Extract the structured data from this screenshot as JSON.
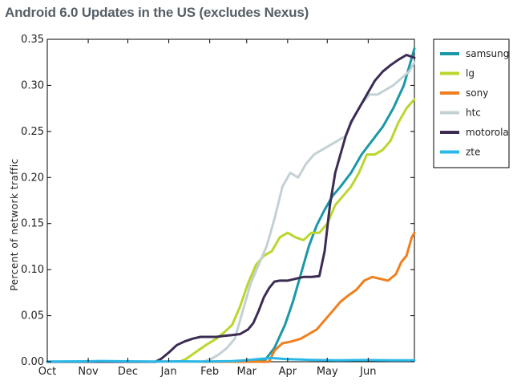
{
  "chart_data": {
    "type": "line",
    "title": "Android 6.0 Updates in the US (excludes Nexus)",
    "xlabel": "",
    "ylabel": "Percent of network traffic",
    "x_ticks": [
      "Oct",
      "Nov",
      "Dec",
      "Jan",
      "Feb",
      "Mar",
      "Apr",
      "May",
      "Jun"
    ],
    "x_tick_days": [
      0,
      31,
      61,
      92,
      123,
      151,
      182,
      212,
      243
    ],
    "xlim": [
      0,
      278
    ],
    "ylim": [
      0,
      0.35
    ],
    "y_ticks": [
      "0.00",
      "0.05",
      "0.10",
      "0.15",
      "0.20",
      "0.25",
      "0.30",
      "0.35"
    ],
    "y_tick_values": [
      0,
      0.05,
      0.1,
      0.15,
      0.2,
      0.25,
      0.3,
      0.35
    ],
    "grid": false,
    "legend_position": "outside-right",
    "series": [
      {
        "name": "samsung",
        "color": "#1b98a8",
        "x": [
          0,
          155,
          165,
          172,
          180,
          186,
          192,
          198,
          204,
          210,
          216,
          222,
          230,
          238,
          246,
          254,
          262,
          270,
          278
        ],
        "y": [
          0,
          0,
          0.002,
          0.015,
          0.04,
          0.065,
          0.095,
          0.125,
          0.148,
          0.165,
          0.18,
          0.19,
          0.205,
          0.225,
          0.24,
          0.255,
          0.275,
          0.3,
          0.34
        ]
      },
      {
        "name": "lg",
        "color": "#bcd62e",
        "x": [
          0,
          100,
          105,
          112,
          120,
          128,
          134,
          140,
          146,
          152,
          158,
          164,
          170,
          176,
          182,
          188,
          194,
          200,
          206,
          212,
          218,
          224,
          230,
          236,
          242,
          248,
          254,
          260,
          266,
          272,
          278
        ],
        "y": [
          0,
          0,
          0.003,
          0.01,
          0.018,
          0.025,
          0.032,
          0.04,
          0.06,
          0.085,
          0.105,
          0.115,
          0.12,
          0.135,
          0.14,
          0.135,
          0.132,
          0.14,
          0.14,
          0.15,
          0.17,
          0.18,
          0.19,
          0.205,
          0.225,
          0.225,
          0.23,
          0.24,
          0.26,
          0.275,
          0.285
        ]
      },
      {
        "name": "sony",
        "color": "#f07f1e",
        "x": [
          0,
          168,
          172,
          178,
          185,
          192,
          198,
          204,
          210,
          216,
          222,
          228,
          234,
          240,
          246,
          252,
          258,
          264,
          268,
          272,
          276,
          278
        ],
        "y": [
          0,
          0,
          0.012,
          0.02,
          0.022,
          0.025,
          0.03,
          0.035,
          0.045,
          0.055,
          0.065,
          0.072,
          0.078,
          0.088,
          0.092,
          0.09,
          0.088,
          0.095,
          0.108,
          0.115,
          0.135,
          0.14
        ]
      },
      {
        "name": "htc",
        "color": "#c3d1d5",
        "x": [
          0,
          118,
          124,
          130,
          136,
          142,
          148,
          154,
          160,
          166,
          172,
          178,
          184,
          190,
          196,
          202,
          208,
          214,
          220,
          226,
          232,
          238,
          244,
          250,
          256,
          262,
          266,
          270,
          274,
          278
        ],
        "y": [
          0,
          0,
          0.003,
          0.008,
          0.015,
          0.025,
          0.055,
          0.085,
          0.105,
          0.125,
          0.155,
          0.19,
          0.205,
          0.2,
          0.215,
          0.225,
          0.23,
          0.235,
          0.24,
          0.245,
          0.265,
          0.28,
          0.29,
          0.29,
          0.295,
          0.3,
          0.305,
          0.31,
          0.315,
          0.325
        ]
      },
      {
        "name": "motorola",
        "color": "#3c2c54",
        "x": [
          0,
          82,
          86,
          92,
          98,
          104,
          110,
          116,
          122,
          128,
          134,
          140,
          146,
          152,
          156,
          160,
          164,
          168,
          172,
          176,
          182,
          188,
          194,
          200,
          206,
          210,
          214,
          218,
          222,
          226,
          230,
          236,
          242,
          248,
          254,
          260,
          266,
          272,
          278
        ],
        "y": [
          0,
          0,
          0.003,
          0.01,
          0.018,
          0.022,
          0.025,
          0.027,
          0.027,
          0.027,
          0.028,
          0.029,
          0.03,
          0.035,
          0.042,
          0.055,
          0.07,
          0.08,
          0.087,
          0.088,
          0.088,
          0.09,
          0.092,
          0.092,
          0.093,
          0.12,
          0.17,
          0.205,
          0.225,
          0.245,
          0.26,
          0.275,
          0.29,
          0.305,
          0.315,
          0.322,
          0.328,
          0.333,
          0.33
        ]
      },
      {
        "name": "zte",
        "color": "#29b7e6",
        "x": [
          0,
          30,
          40,
          60,
          80,
          100,
          120,
          140,
          150,
          160,
          170,
          180,
          200,
          220,
          240,
          260,
          278
        ],
        "y": [
          0.0003,
          0.0004,
          0.0008,
          0.0004,
          0.0003,
          0.0004,
          0.0003,
          0.0006,
          0.0015,
          0.003,
          0.004,
          0.003,
          0.002,
          0.0015,
          0.0018,
          0.0015,
          0.0015
        ]
      }
    ]
  }
}
